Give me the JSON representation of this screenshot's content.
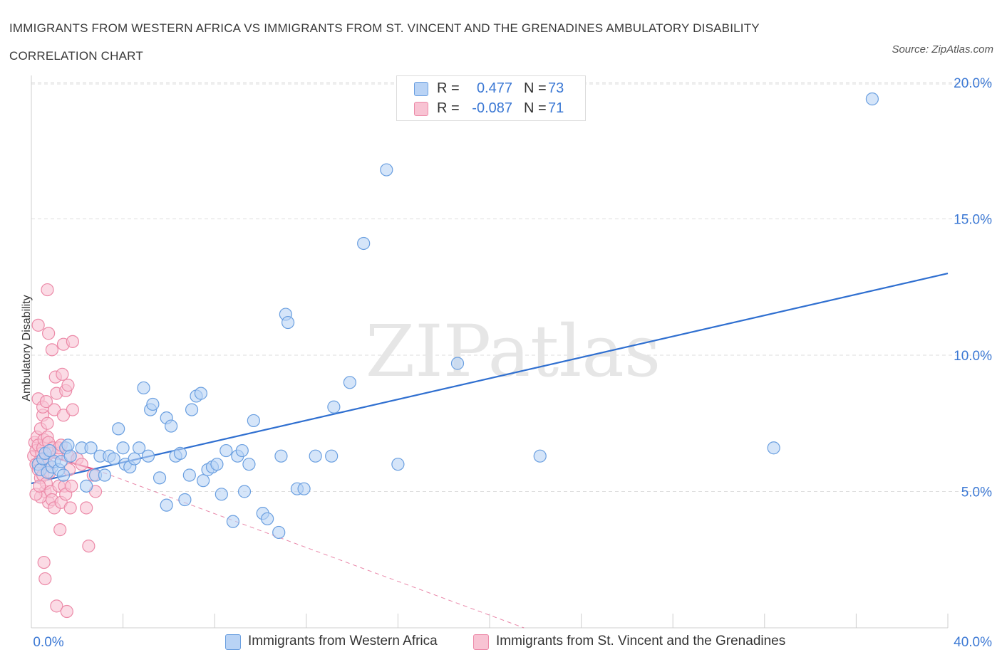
{
  "header": {
    "title": "IMMIGRANTS FROM WESTERN AFRICA VS IMMIGRANTS FROM ST. VINCENT AND THE GRENADINES AMBULATORY DISABILITY CORRELATION CHART",
    "source": "Source: ZipAtlas.com"
  },
  "legend": {
    "blue": {
      "r_label": "R =",
      "r_value": "0.477",
      "n_label": "N =",
      "n_value": "73"
    },
    "pink": {
      "r_label": "R =",
      "r_value": "-0.087",
      "n_label": "N =",
      "n_value": "71"
    }
  },
  "colors": {
    "blue_fill": "#b9d3f5",
    "blue_stroke": "#6a9fe0",
    "blue_line": "#2f6fd0",
    "pink_fill": "#f8c3d3",
    "pink_stroke": "#ec8aa8",
    "pink_line": "#e05585",
    "tick_text": "#3b78d4",
    "grid": "#dedede"
  },
  "chart_data": {
    "type": "scatter",
    "title": "IMMIGRANTS FROM WESTERN AFRICA VS IMMIGRANTS FROM ST. VINCENT AND THE GRENADINES AMBULATORY DISABILITY CORRELATION CHART",
    "xlabel": "",
    "ylabel": "Ambulatory Disability",
    "xlim": [
      0,
      40
    ],
    "ylim": [
      0,
      20.5
    ],
    "x_tick_labels": [
      {
        "value": 0,
        "label": "0.0%"
      },
      {
        "value": 40,
        "label": "40.0%"
      }
    ],
    "y_tick_labels": [
      {
        "value": 5,
        "label": "5.0%"
      },
      {
        "value": 10,
        "label": "10.0%"
      },
      {
        "value": 15,
        "label": "15.0%"
      },
      {
        "value": 20,
        "label": "20.0%"
      }
    ],
    "watermark": "ZIPatlas",
    "series": [
      {
        "name": "Immigrants from Western Africa",
        "color": "blue",
        "trend": {
          "x": [
            0,
            40
          ],
          "y": [
            5.3,
            13.0
          ],
          "style": "solid"
        },
        "points": [
          [
            0.3,
            6.0
          ],
          [
            0.4,
            5.8
          ],
          [
            0.5,
            6.2
          ],
          [
            0.6,
            6.4
          ],
          [
            0.7,
            5.7
          ],
          [
            0.8,
            6.5
          ],
          [
            0.9,
            5.9
          ],
          [
            1.0,
            6.1
          ],
          [
            1.2,
            5.8
          ],
          [
            1.3,
            6.1
          ],
          [
            1.4,
            5.6
          ],
          [
            1.5,
            6.6
          ],
          [
            1.6,
            6.7
          ],
          [
            1.7,
            6.3
          ],
          [
            2.2,
            6.6
          ],
          [
            2.4,
            5.2
          ],
          [
            2.6,
            6.6
          ],
          [
            2.8,
            5.6
          ],
          [
            3.0,
            6.3
          ],
          [
            3.2,
            5.6
          ],
          [
            3.4,
            6.3
          ],
          [
            3.6,
            6.2
          ],
          [
            3.8,
            7.3
          ],
          [
            4.0,
            6.6
          ],
          [
            4.1,
            6.0
          ],
          [
            4.3,
            5.9
          ],
          [
            4.5,
            6.2
          ],
          [
            4.7,
            6.6
          ],
          [
            4.9,
            8.8
          ],
          [
            5.1,
            6.3
          ],
          [
            5.2,
            8.0
          ],
          [
            5.3,
            8.2
          ],
          [
            5.6,
            5.5
          ],
          [
            5.9,
            7.7
          ],
          [
            5.9,
            4.5
          ],
          [
            6.1,
            7.4
          ],
          [
            6.3,
            6.3
          ],
          [
            6.5,
            6.4
          ],
          [
            6.7,
            4.7
          ],
          [
            6.9,
            5.6
          ],
          [
            7.0,
            8.0
          ],
          [
            7.2,
            8.5
          ],
          [
            7.4,
            8.6
          ],
          [
            7.5,
            5.4
          ],
          [
            7.7,
            5.8
          ],
          [
            7.9,
            5.9
          ],
          [
            8.1,
            6.0
          ],
          [
            8.3,
            4.9
          ],
          [
            8.5,
            6.5
          ],
          [
            8.8,
            3.9
          ],
          [
            9.0,
            6.3
          ],
          [
            9.2,
            6.5
          ],
          [
            9.3,
            5.0
          ],
          [
            9.5,
            6.0
          ],
          [
            9.7,
            7.6
          ],
          [
            10.1,
            4.2
          ],
          [
            10.3,
            4.0
          ],
          [
            10.8,
            3.5
          ],
          [
            10.9,
            6.3
          ],
          [
            11.1,
            11.5
          ],
          [
            11.2,
            11.2
          ],
          [
            11.6,
            5.1
          ],
          [
            11.9,
            5.1
          ],
          [
            12.4,
            6.3
          ],
          [
            13.1,
            6.3
          ],
          [
            13.2,
            8.1
          ],
          [
            13.9,
            9.0
          ],
          [
            14.5,
            14.1
          ],
          [
            15.5,
            16.8
          ],
          [
            16.0,
            6.0
          ],
          [
            18.6,
            9.7
          ],
          [
            22.2,
            6.3
          ],
          [
            32.4,
            6.6
          ],
          [
            36.7,
            19.4
          ]
        ]
      },
      {
        "name": "Immigrants from St. Vincent and the Grenadines",
        "color": "pink",
        "trend": {
          "x": [
            0,
            2.8
          ],
          "y": [
            6.5,
            5.8
          ],
          "style": "solid",
          "extension": {
            "x": [
              2.8,
              21.5
            ],
            "y": [
              5.8,
              0.0
            ],
            "style": "dashed"
          }
        },
        "points": [
          [
            0.1,
            6.3
          ],
          [
            0.15,
            6.8
          ],
          [
            0.2,
            6.5
          ],
          [
            0.2,
            6.0
          ],
          [
            0.25,
            7.0
          ],
          [
            0.3,
            6.7
          ],
          [
            0.3,
            5.8
          ],
          [
            0.35,
            6.1
          ],
          [
            0.4,
            5.5
          ],
          [
            0.4,
            7.3
          ],
          [
            0.45,
            6.4
          ],
          [
            0.5,
            6.6
          ],
          [
            0.5,
            5.6
          ],
          [
            0.55,
            6.9
          ],
          [
            0.6,
            6.2
          ],
          [
            0.6,
            5.0
          ],
          [
            0.65,
            5.3
          ],
          [
            0.7,
            6.0
          ],
          [
            0.7,
            7.0
          ],
          [
            0.75,
            4.6
          ],
          [
            0.3,
            11.1
          ],
          [
            0.3,
            8.4
          ],
          [
            0.4,
            4.8
          ],
          [
            0.5,
            7.8
          ],
          [
            0.5,
            8.1
          ],
          [
            0.55,
            2.4
          ],
          [
            0.6,
            1.8
          ],
          [
            0.65,
            8.3
          ],
          [
            0.7,
            7.5
          ],
          [
            0.75,
            6.8
          ],
          [
            0.7,
            12.4
          ],
          [
            0.75,
            10.8
          ],
          [
            0.8,
            6.4
          ],
          [
            0.8,
            5.7
          ],
          [
            0.85,
            5.0
          ],
          [
            0.9,
            4.7
          ],
          [
            0.9,
            10.2
          ],
          [
            0.95,
            6.6
          ],
          [
            1.0,
            8.0
          ],
          [
            1.0,
            4.4
          ],
          [
            1.05,
            9.2
          ],
          [
            1.1,
            8.6
          ],
          [
            1.1,
            0.8
          ],
          [
            1.15,
            6.4
          ],
          [
            1.2,
            6.6
          ],
          [
            1.2,
            5.2
          ],
          [
            1.25,
            3.6
          ],
          [
            1.3,
            6.7
          ],
          [
            1.3,
            4.6
          ],
          [
            1.35,
            9.3
          ],
          [
            1.4,
            10.4
          ],
          [
            1.4,
            7.8
          ],
          [
            1.45,
            5.2
          ],
          [
            1.5,
            8.7
          ],
          [
            1.5,
            4.9
          ],
          [
            1.55,
            0.6
          ],
          [
            1.6,
            6.3
          ],
          [
            1.6,
            8.9
          ],
          [
            1.65,
            5.8
          ],
          [
            1.7,
            4.4
          ],
          [
            1.75,
            5.2
          ],
          [
            1.8,
            10.5
          ],
          [
            1.8,
            8.0
          ],
          [
            2.0,
            6.2
          ],
          [
            2.2,
            6.0
          ],
          [
            2.4,
            4.4
          ],
          [
            2.5,
            3.0
          ],
          [
            2.7,
            5.6
          ],
          [
            2.8,
            5.0
          ],
          [
            0.2,
            4.9
          ],
          [
            0.35,
            5.2
          ]
        ]
      }
    ]
  },
  "bottom_legend": {
    "blue_label": "Immigrants from Western Africa",
    "pink_label": "Immigrants from St. Vincent and the Grenadines"
  }
}
